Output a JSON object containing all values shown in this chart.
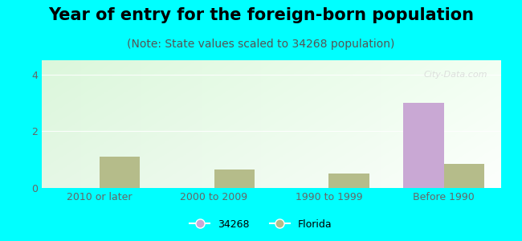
{
  "title": "Year of entry for the foreign-born population",
  "subtitle": "(Note: State values scaled to 34268 population)",
  "categories": [
    "2010 or later",
    "2000 to 2009",
    "1990 to 1999",
    "Before 1990"
  ],
  "series_34268": [
    0,
    0,
    0,
    3.0
  ],
  "series_florida": [
    1.1,
    0.65,
    0.5,
    0.85
  ],
  "color_34268": "#c9a8d4",
  "color_florida": "#b5bc8a",
  "ylim": [
    0,
    4.5
  ],
  "yticks": [
    0,
    2,
    4
  ],
  "background_outer": "#00ffff",
  "title_fontsize": 15,
  "subtitle_fontsize": 10,
  "tick_label_color": "#666666",
  "watermark": "City-Data.com",
  "bar_width": 0.35,
  "legend_label_34268": "34268",
  "legend_label_florida": "Florida"
}
